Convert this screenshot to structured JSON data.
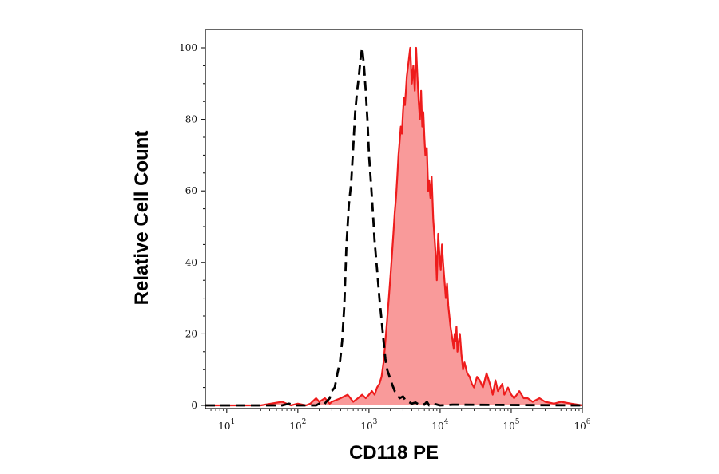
{
  "chart_data": {
    "type": "area",
    "xlabel": "CD118 PE",
    "ylabel": "Relative Cell Count",
    "x_scale": "log",
    "xlim": [
      5,
      1000000
    ],
    "ylim": [
      0,
      100
    ],
    "x_ticks": [
      {
        "base": "10",
        "exp": "1",
        "value": 10
      },
      {
        "base": "10",
        "exp": "2",
        "value": 100
      },
      {
        "base": "10",
        "exp": "3",
        "value": 1000
      },
      {
        "base": "10",
        "exp": "4",
        "value": 10000
      },
      {
        "base": "10",
        "exp": "5",
        "value": 100000
      },
      {
        "base": "10",
        "exp": "6",
        "value": 1000000
      }
    ],
    "y_ticks": [
      "0",
      "20",
      "40",
      "60",
      "80",
      "100"
    ],
    "series": [
      {
        "style": "dashed",
        "color": "#000000",
        "fill": "none",
        "x": [
          5,
          60,
          75,
          90,
          180,
          200,
          230,
          250,
          280,
          300,
          330,
          360,
          390,
          420,
          450,
          480,
          520,
          560,
          600,
          640,
          680,
          720,
          760,
          800,
          850,
          900,
          950,
          1000,
          1050,
          1100,
          1150,
          1200,
          1300,
          1400,
          1500,
          1600,
          1700,
          1800,
          1950,
          2100,
          2300,
          2500,
          2700,
          3000,
          3300,
          3600,
          4000,
          4500,
          5000,
          5500,
          6000,
          6500,
          7000,
          8000,
          10000,
          15000,
          1000000
        ],
        "y": [
          0,
          0,
          0.5,
          0,
          0,
          0.5,
          0,
          1,
          2,
          4,
          5,
          9,
          12,
          18,
          28,
          44,
          56,
          62,
          72,
          82,
          88,
          92,
          97,
          100,
          95,
          88,
          80,
          70,
          64,
          58,
          52,
          46,
          38,
          30,
          24,
          18,
          13,
          10,
          8,
          6,
          4,
          3,
          2,
          2.5,
          1.2,
          1,
          0.5,
          0.8,
          0.3,
          0.6,
          0.2,
          1,
          0,
          0.5,
          0,
          0.2,
          0
        ]
      },
      {
        "style": "solid",
        "color": "#ee1c1c",
        "fill": "#f99a9a",
        "x": [
          5,
          30,
          60,
          80,
          100,
          130,
          150,
          180,
          200,
          240,
          280,
          300,
          400,
          500,
          600,
          700,
          800,
          900,
          1000,
          1100,
          1200,
          1300,
          1400,
          1500,
          1600,
          1700,
          1800,
          1900,
          2000,
          2100,
          2200,
          2300,
          2400,
          2500,
          2600,
          2700,
          2800,
          2900,
          3000,
          3100,
          3200,
          3300,
          3400,
          3600,
          3800,
          4000,
          4200,
          4400,
          4600,
          4800,
          5000,
          5200,
          5400,
          5600,
          5800,
          6000,
          6200,
          6500,
          6800,
          7000,
          7300,
          7600,
          8000,
          8400,
          8800,
          9000,
          9400,
          9800,
          10200,
          10600,
          11000,
          11500,
          12000,
          12500,
          13000,
          13500,
          14000,
          14500,
          15000,
          15500,
          16000,
          16500,
          17000,
          17500,
          18000,
          19000,
          20000,
          21000,
          22000,
          24000,
          26000,
          28000,
          30000,
          33000,
          36000,
          40000,
          45000,
          50000,
          55000,
          60000,
          65000,
          70000,
          75000,
          80000,
          85000,
          90000,
          100000,
          110000,
          120000,
          130000,
          150000,
          170000,
          200000,
          250000,
          300000,
          400000,
          500000,
          700000,
          1000000
        ],
        "y": [
          0,
          0,
          1,
          0,
          0.5,
          0,
          0.5,
          2,
          1,
          2,
          0.5,
          1,
          2,
          3,
          1,
          2,
          3,
          2,
          3,
          4,
          3,
          5,
          6,
          8,
          12,
          18,
          24,
          30,
          36,
          42,
          48,
          54,
          58,
          64,
          70,
          74,
          78,
          76,
          82,
          86,
          84,
          88,
          92,
          96,
          100,
          90,
          95,
          88,
          100,
          92,
          85,
          80,
          88,
          78,
          82,
          75,
          70,
          72,
          60,
          63,
          58,
          64,
          52,
          46,
          40,
          35,
          48,
          42,
          38,
          45,
          40,
          35,
          30,
          34,
          28,
          25,
          22,
          20,
          18,
          16,
          20,
          18,
          22,
          15,
          17,
          20,
          14,
          10,
          12,
          9,
          8,
          6,
          5,
          8,
          7,
          5,
          9,
          6,
          3,
          7,
          4,
          5,
          6,
          3,
          4,
          5,
          3,
          2,
          3,
          4,
          2,
          2,
          1,
          2,
          1,
          0.5,
          1,
          0.5,
          0
        ]
      }
    ]
  }
}
